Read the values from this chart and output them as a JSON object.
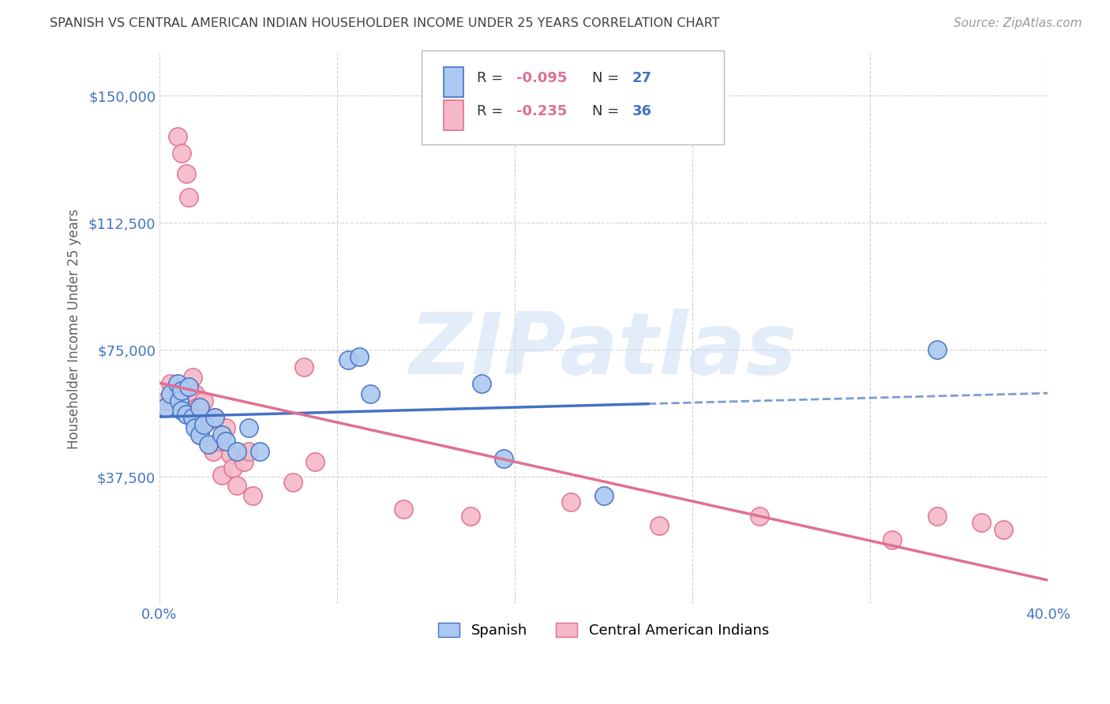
{
  "title": "SPANISH VS CENTRAL AMERICAN INDIAN HOUSEHOLDER INCOME UNDER 25 YEARS CORRELATION CHART",
  "source": "Source: ZipAtlas.com",
  "ylabel": "Householder Income Under 25 years",
  "xlim": [
    0.0,
    0.4
  ],
  "ylim": [
    0,
    162500
  ],
  "yticks": [
    0,
    37500,
    75000,
    112500,
    150000
  ],
  "ytick_labels": [
    "",
    "$37,500",
    "$75,000",
    "$112,500",
    "$150,000"
  ],
  "xticks": [
    0.0,
    0.08,
    0.16,
    0.24,
    0.32,
    0.4
  ],
  "xtick_labels": [
    "0.0%",
    "",
    "",
    "",
    "",
    "40.0%"
  ],
  "grid_color": "#d0d0d0",
  "background_color": "#ffffff",
  "watermark_text": "ZIPatlas",
  "legend_blue_label": "Spanish",
  "legend_pink_label": "Central American Indians",
  "blue_R": "-0.095",
  "blue_N": "27",
  "pink_R": "-0.235",
  "pink_N": "36",
  "blue_fill": "#aac8f0",
  "pink_fill": "#f5b8c8",
  "blue_edge": "#4472c4",
  "pink_edge": "#e07090",
  "blue_line": "#4472c4",
  "pink_line": "#e07090",
  "title_color": "#404040",
  "axis_tick_color": "#4472c4",
  "R_color": "#e07090",
  "N_color": "#4472c4",
  "spanish_x": [
    0.003,
    0.005,
    0.008,
    0.009,
    0.01,
    0.01,
    0.012,
    0.013,
    0.015,
    0.016,
    0.018,
    0.018,
    0.02,
    0.022,
    0.025,
    0.028,
    0.03,
    0.035,
    0.04,
    0.045,
    0.085,
    0.09,
    0.095,
    0.145,
    0.155,
    0.2,
    0.35
  ],
  "spanish_y": [
    58000,
    62000,
    65000,
    60000,
    63000,
    57000,
    56000,
    64000,
    55000,
    52000,
    58000,
    50000,
    53000,
    47000,
    55000,
    50000,
    48000,
    45000,
    52000,
    45000,
    72000,
    73000,
    62000,
    65000,
    43000,
    32000,
    75000
  ],
  "central_x": [
    0.003,
    0.005,
    0.008,
    0.01,
    0.012,
    0.013,
    0.015,
    0.016,
    0.017,
    0.018,
    0.018,
    0.02,
    0.022,
    0.024,
    0.025,
    0.027,
    0.028,
    0.03,
    0.032,
    0.033,
    0.035,
    0.038,
    0.04,
    0.042,
    0.06,
    0.065,
    0.07,
    0.11,
    0.14,
    0.185,
    0.225,
    0.27,
    0.33,
    0.35,
    0.37,
    0.38
  ],
  "central_y": [
    60000,
    65000,
    138000,
    133000,
    127000,
    120000,
    67000,
    62000,
    58000,
    57000,
    50000,
    60000,
    54000,
    45000,
    55000,
    48000,
    38000,
    52000,
    44000,
    40000,
    35000,
    42000,
    45000,
    32000,
    36000,
    70000,
    42000,
    28000,
    26000,
    30000,
    23000,
    26000,
    19000,
    26000,
    24000,
    22000
  ]
}
